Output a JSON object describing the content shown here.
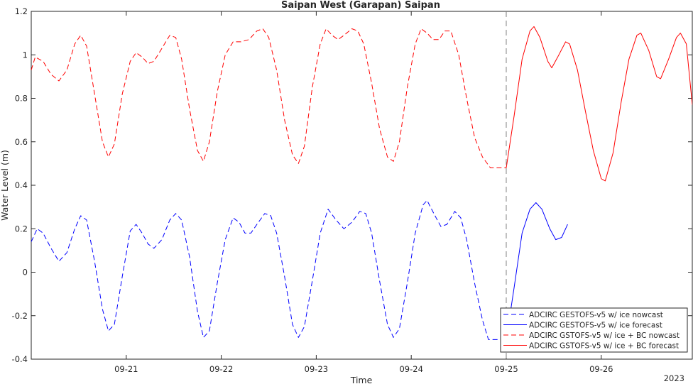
{
  "chart_data": {
    "type": "line",
    "title": "Saipan West (Garapan) Saipan",
    "xlabel": "Time",
    "ylabel": "Water Level (m)",
    "year_label": "2023",
    "xlim": [
      "2023-09-20T00:00",
      "2023-09-26T23:00"
    ],
    "ylim": [
      -0.4,
      1.2
    ],
    "xticks": [
      {
        "x": "2023-09-21T00:00",
        "label": "09-21"
      },
      {
        "x": "2023-09-22T00:00",
        "label": "09-22"
      },
      {
        "x": "2023-09-23T00:00",
        "label": "09-23"
      },
      {
        "x": "2023-09-24T00:00",
        "label": "09-24"
      },
      {
        "x": "2023-09-25T00:00",
        "label": "09-25"
      },
      {
        "x": "2023-09-26T00:00",
        "label": "09-26"
      }
    ],
    "yticks": [
      {
        "y": -0.4,
        "label": "-0.4"
      },
      {
        "y": -0.2,
        "label": "-0.2"
      },
      {
        "y": 0,
        "label": "0"
      },
      {
        "y": 0.2,
        "label": "0.2"
      },
      {
        "y": 0.4,
        "label": "0.4"
      },
      {
        "y": 0.6,
        "label": "0.6"
      },
      {
        "y": 0.8,
        "label": "0.8"
      },
      {
        "y": 1,
        "label": "1"
      },
      {
        "y": 1.2,
        "label": "1.2"
      }
    ],
    "grid": false,
    "legend_position": "bottom-right",
    "nowcast_forecast_boundary": "2023-09-25T00:00",
    "series": [
      {
        "name": "ADCIRC GESTOFS-v5 w/ ice nowcast",
        "color": "#0000ff",
        "dash": "dashed",
        "points": [
          [
            "2023-09-20T00:00",
            0.14
          ],
          [
            "2023-09-20T01:30",
            0.2
          ],
          [
            "2023-09-20T03:00",
            0.18
          ],
          [
            "2023-09-20T05:00",
            0.11
          ],
          [
            "2023-09-20T07:00",
            0.05
          ],
          [
            "2023-09-20T09:00",
            0.09
          ],
          [
            "2023-09-20T11:00",
            0.2
          ],
          [
            "2023-09-20T12:30",
            0.26
          ],
          [
            "2023-09-20T14:00",
            0.24
          ],
          [
            "2023-09-20T16:00",
            0.05
          ],
          [
            "2023-09-20T18:00",
            -0.17
          ],
          [
            "2023-09-20T19:30",
            -0.27
          ],
          [
            "2023-09-20T21:00",
            -0.24
          ],
          [
            "2023-09-20T23:00",
            -0.02
          ],
          [
            "2023-09-21T01:00",
            0.19
          ],
          [
            "2023-09-21T02:30",
            0.22
          ],
          [
            "2023-09-21T04:00",
            0.18
          ],
          [
            "2023-09-21T05:30",
            0.13
          ],
          [
            "2023-09-21T07:00",
            0.11
          ],
          [
            "2023-09-21T09:00",
            0.15
          ],
          [
            "2023-09-21T11:00",
            0.24
          ],
          [
            "2023-09-21T12:30",
            0.27
          ],
          [
            "2023-09-21T14:00",
            0.24
          ],
          [
            "2023-09-21T16:00",
            0.07
          ],
          [
            "2023-09-21T18:00",
            -0.18
          ],
          [
            "2023-09-21T19:30",
            -0.3
          ],
          [
            "2023-09-21T21:00",
            -0.27
          ],
          [
            "2023-09-21T23:00",
            -0.05
          ],
          [
            "2023-09-22T01:00",
            0.15
          ],
          [
            "2023-09-22T03:00",
            0.25
          ],
          [
            "2023-09-22T04:30",
            0.23
          ],
          [
            "2023-09-22T06:00",
            0.18
          ],
          [
            "2023-09-22T07:30",
            0.18
          ],
          [
            "2023-09-22T09:00",
            0.22
          ],
          [
            "2023-09-22T11:00",
            0.27
          ],
          [
            "2023-09-22T12:30",
            0.26
          ],
          [
            "2023-09-22T14:00",
            0.18
          ],
          [
            "2023-09-22T16:00",
            -0.02
          ],
          [
            "2023-09-22T18:00",
            -0.24
          ],
          [
            "2023-09-22T19:30",
            -0.3
          ],
          [
            "2023-09-22T21:00",
            -0.25
          ],
          [
            "2023-09-22T23:00",
            -0.04
          ],
          [
            "2023-09-23T01:00",
            0.18
          ],
          [
            "2023-09-23T03:00",
            0.29
          ],
          [
            "2023-09-23T05:00",
            0.24
          ],
          [
            "2023-09-23T07:00",
            0.2
          ],
          [
            "2023-09-23T09:00",
            0.23
          ],
          [
            "2023-09-23T11:00",
            0.28
          ],
          [
            "2023-09-23T12:30",
            0.27
          ],
          [
            "2023-09-23T14:00",
            0.18
          ],
          [
            "2023-09-23T16:00",
            -0.04
          ],
          [
            "2023-09-23T18:00",
            -0.24
          ],
          [
            "2023-09-23T19:30",
            -0.3
          ],
          [
            "2023-09-23T21:00",
            -0.26
          ],
          [
            "2023-09-23T23:00",
            -0.05
          ],
          [
            "2023-09-24T01:00",
            0.18
          ],
          [
            "2023-09-24T03:00",
            0.31
          ],
          [
            "2023-09-24T04:00",
            0.33
          ],
          [
            "2023-09-24T06:00",
            0.26
          ],
          [
            "2023-09-24T07:30",
            0.21
          ],
          [
            "2023-09-24T09:00",
            0.22
          ],
          [
            "2023-09-24T11:00",
            0.28
          ],
          [
            "2023-09-24T12:30",
            0.25
          ],
          [
            "2023-09-24T14:00",
            0.15
          ],
          [
            "2023-09-24T16:00",
            -0.05
          ],
          [
            "2023-09-24T18:00",
            -0.22
          ],
          [
            "2023-09-24T19:30",
            -0.31
          ],
          [
            "2023-09-25T00:00",
            -0.31
          ]
        ]
      },
      {
        "name": "ADCIRC GESTOFS-v5 w/ ice forecast",
        "color": "#0000ff",
        "dash": "solid",
        "points": [
          [
            "2023-09-25T00:00",
            -0.31
          ],
          [
            "2023-09-25T02:00",
            -0.07
          ],
          [
            "2023-09-25T04:00",
            0.18
          ],
          [
            "2023-09-25T06:00",
            0.29
          ],
          [
            "2023-09-25T07:30",
            0.32
          ],
          [
            "2023-09-25T09:00",
            0.29
          ],
          [
            "2023-09-25T11:00",
            0.2
          ],
          [
            "2023-09-25T12:30",
            0.15
          ],
          [
            "2023-09-25T14:00",
            0.16
          ],
          [
            "2023-09-25T15:30",
            0.22
          ]
        ]
      },
      {
        "name": "ADCIRC GSTOFS-v5 w/ ice + BC nowcast",
        "color": "#ff0000",
        "dash": "dashed",
        "points": [
          [
            "2023-09-20T00:00",
            0.93
          ],
          [
            "2023-09-20T01:00",
            0.99
          ],
          [
            "2023-09-20T03:00",
            0.97
          ],
          [
            "2023-09-20T05:00",
            0.91
          ],
          [
            "2023-09-20T07:00",
            0.88
          ],
          [
            "2023-09-20T09:00",
            0.93
          ],
          [
            "2023-09-20T11:00",
            1.05
          ],
          [
            "2023-09-20T12:30",
            1.09
          ],
          [
            "2023-09-20T14:00",
            1.04
          ],
          [
            "2023-09-20T16:00",
            0.82
          ],
          [
            "2023-09-20T18:00",
            0.6
          ],
          [
            "2023-09-20T19:30",
            0.53
          ],
          [
            "2023-09-20T21:00",
            0.59
          ],
          [
            "2023-09-20T23:00",
            0.82
          ],
          [
            "2023-09-21T01:00",
            0.97
          ],
          [
            "2023-09-21T02:30",
            1.01
          ],
          [
            "2023-09-21T04:00",
            0.99
          ],
          [
            "2023-09-21T05:30",
            0.96
          ],
          [
            "2023-09-21T07:00",
            0.97
          ],
          [
            "2023-09-21T09:00",
            1.03
          ],
          [
            "2023-09-21T11:00",
            1.09
          ],
          [
            "2023-09-21T12:30",
            1.08
          ],
          [
            "2023-09-21T14:00",
            0.98
          ],
          [
            "2023-09-21T16:00",
            0.75
          ],
          [
            "2023-09-21T18:00",
            0.56
          ],
          [
            "2023-09-21T19:30",
            0.51
          ],
          [
            "2023-09-21T21:00",
            0.6
          ],
          [
            "2023-09-21T23:00",
            0.83
          ],
          [
            "2023-09-22T01:00",
            1.0
          ],
          [
            "2023-09-22T03:00",
            1.06
          ],
          [
            "2023-09-22T05:00",
            1.06
          ],
          [
            "2023-09-22T07:00",
            1.07
          ],
          [
            "2023-09-22T09:00",
            1.11
          ],
          [
            "2023-09-22T10:30",
            1.12
          ],
          [
            "2023-09-22T12:00",
            1.08
          ],
          [
            "2023-09-22T14:00",
            0.93
          ],
          [
            "2023-09-22T16:00",
            0.7
          ],
          [
            "2023-09-22T18:00",
            0.54
          ],
          [
            "2023-09-22T19:30",
            0.5
          ],
          [
            "2023-09-22T21:00",
            0.58
          ],
          [
            "2023-09-22T23:00",
            0.85
          ],
          [
            "2023-09-23T01:00",
            1.05
          ],
          [
            "2023-09-23T02:30",
            1.12
          ],
          [
            "2023-09-23T04:00",
            1.09
          ],
          [
            "2023-09-23T05:30",
            1.07
          ],
          [
            "2023-09-23T07:00",
            1.09
          ],
          [
            "2023-09-23T09:00",
            1.12
          ],
          [
            "2023-09-23T10:30",
            1.11
          ],
          [
            "2023-09-23T12:00",
            1.05
          ],
          [
            "2023-09-23T14:00",
            0.87
          ],
          [
            "2023-09-23T16:00",
            0.66
          ],
          [
            "2023-09-23T18:00",
            0.53
          ],
          [
            "2023-09-23T19:30",
            0.51
          ],
          [
            "2023-09-23T21:00",
            0.6
          ],
          [
            "2023-09-23T23:00",
            0.85
          ],
          [
            "2023-09-24T01:00",
            1.05
          ],
          [
            "2023-09-24T02:30",
            1.12
          ],
          [
            "2023-09-24T04:00",
            1.1
          ],
          [
            "2023-09-24T05:30",
            1.07
          ],
          [
            "2023-09-24T07:00",
            1.07
          ],
          [
            "2023-09-24T08:30",
            1.11
          ],
          [
            "2023-09-24T10:00",
            1.11
          ],
          [
            "2023-09-24T12:00",
            1.0
          ],
          [
            "2023-09-24T14:00",
            0.8
          ],
          [
            "2023-09-24T16:00",
            0.62
          ],
          [
            "2023-09-24T18:00",
            0.53
          ],
          [
            "2023-09-24T20:00",
            0.48
          ],
          [
            "2023-09-25T00:00",
            0.48
          ]
        ]
      },
      {
        "name": "ADCIRC GSTOFS-v5 w/ ice + BC forecast",
        "color": "#ff0000",
        "dash": "solid",
        "points": [
          [
            "2023-09-25T00:00",
            0.48
          ],
          [
            "2023-09-25T02:00",
            0.72
          ],
          [
            "2023-09-25T04:00",
            0.98
          ],
          [
            "2023-09-25T06:00",
            1.11
          ],
          [
            "2023-09-25T07:00",
            1.13
          ],
          [
            "2023-09-25T08:30",
            1.08
          ],
          [
            "2023-09-25T10:30",
            0.97
          ],
          [
            "2023-09-25T11:30",
            0.94
          ],
          [
            "2023-09-25T13:00",
            0.99
          ],
          [
            "2023-09-25T15:00",
            1.06
          ],
          [
            "2023-09-25T16:00",
            1.05
          ],
          [
            "2023-09-25T18:00",
            0.93
          ],
          [
            "2023-09-25T20:00",
            0.74
          ],
          [
            "2023-09-25T22:00",
            0.56
          ],
          [
            "2023-09-26T00:00",
            0.43
          ],
          [
            "2023-09-26T01:00",
            0.42
          ],
          [
            "2023-09-26T03:00",
            0.55
          ],
          [
            "2023-09-26T05:00",
            0.78
          ],
          [
            "2023-09-26T07:00",
            0.98
          ],
          [
            "2023-09-26T09:00",
            1.09
          ],
          [
            "2023-09-26T10:00",
            1.1
          ],
          [
            "2023-09-26T12:00",
            1.02
          ],
          [
            "2023-09-26T14:00",
            0.9
          ],
          [
            "2023-09-26T15:00",
            0.89
          ],
          [
            "2023-09-26T17:00",
            0.98
          ],
          [
            "2023-09-26T19:00",
            1.08
          ],
          [
            "2023-09-26T20:00",
            1.1
          ],
          [
            "2023-09-26T21:30",
            1.05
          ],
          [
            "2023-09-26T23:00",
            0.77
          ]
        ]
      }
    ]
  }
}
